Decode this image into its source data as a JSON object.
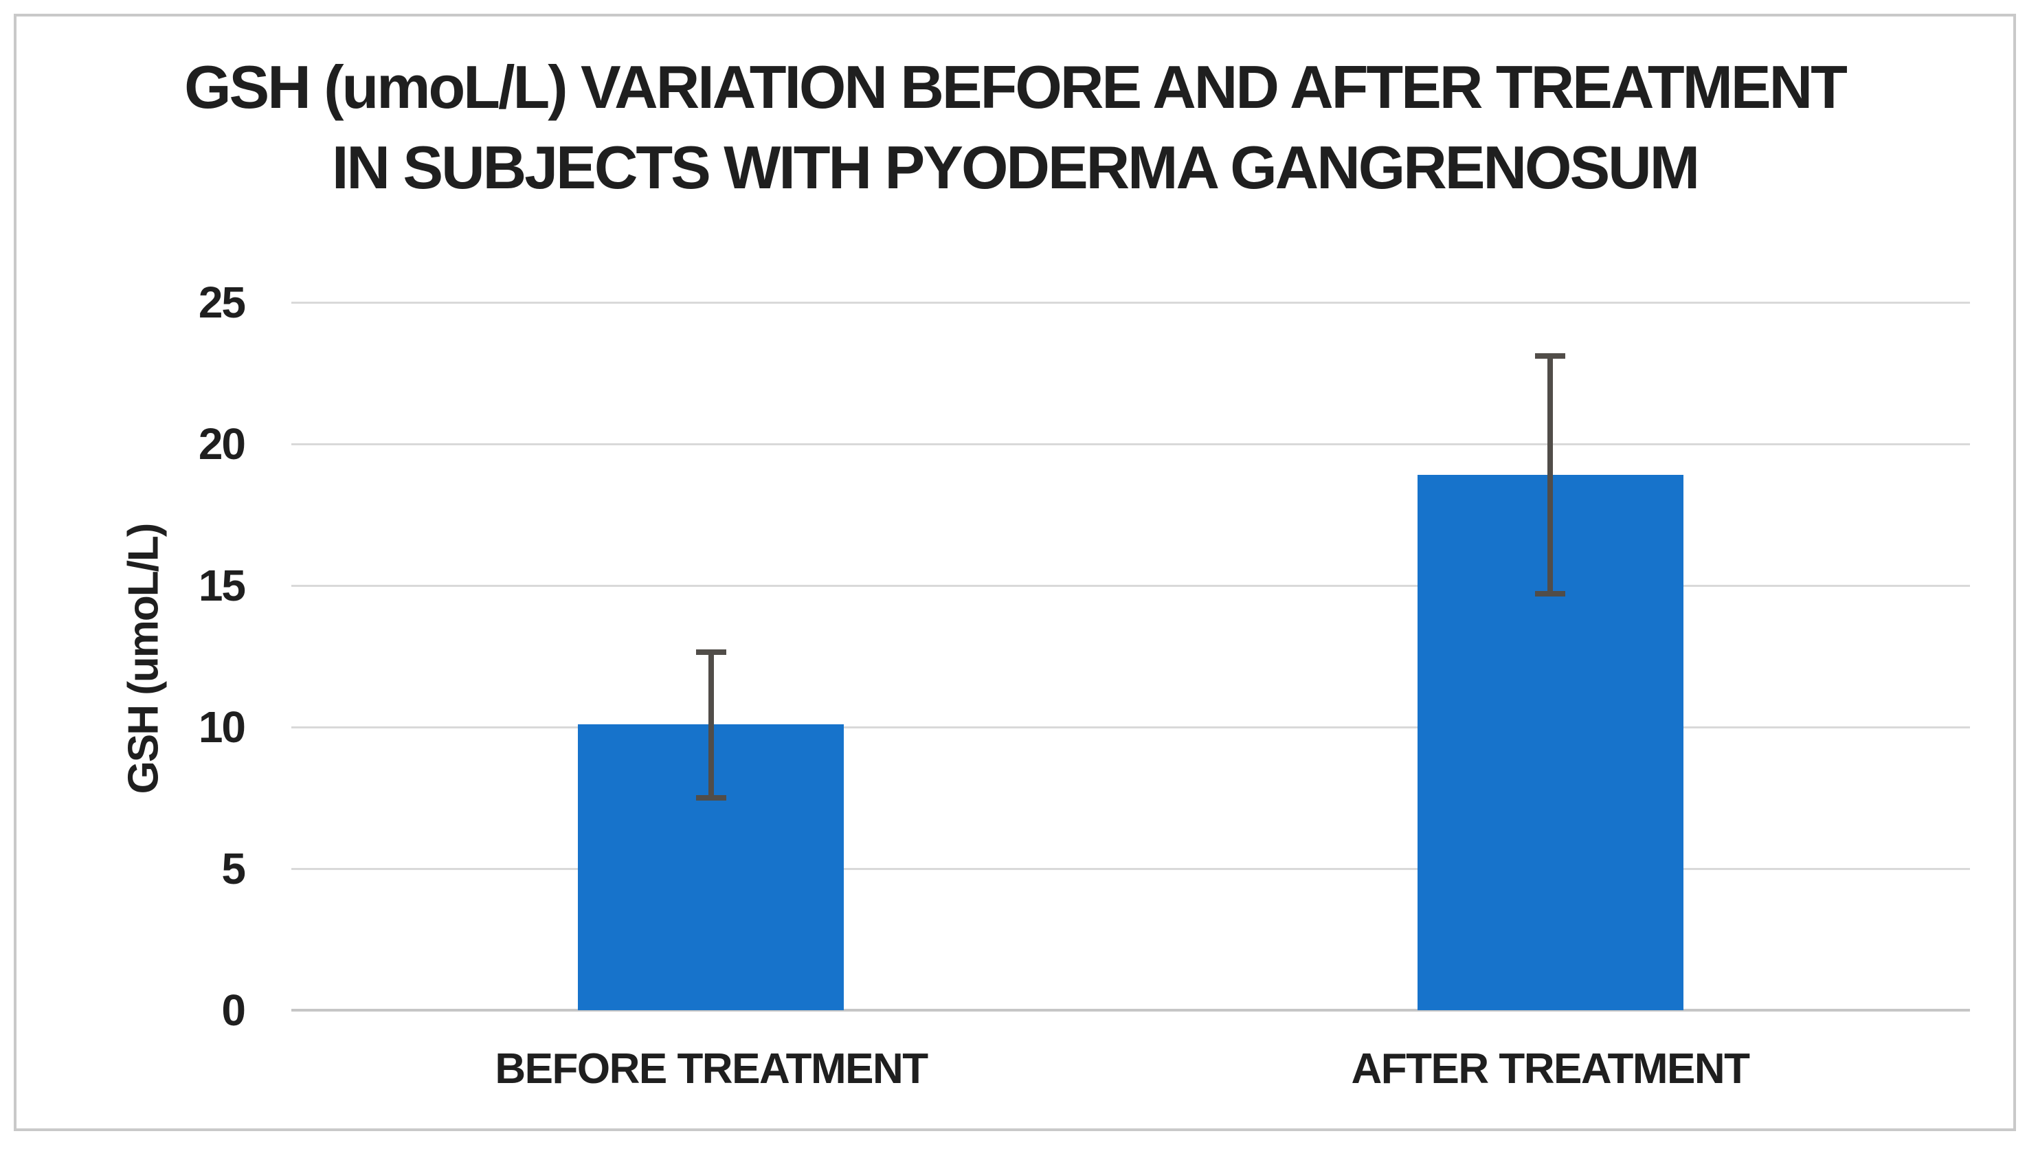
{
  "chart": {
    "title_line1": "GSH (umoL/L) VARIATION BEFORE AND AFTER TREATMENT",
    "title_line2": "IN SUBJECTS WITH PYODERMA GANGRENOSUM"
  },
  "chart_data": {
    "type": "bar",
    "title": "GSH (umoL/L) VARIATION BEFORE AND AFTER TREATMENT IN SUBJECTS WITH PYODERMA GANGRENOSUM",
    "categories": [
      "BEFORE TREATMENT",
      "AFTER TREATMENT"
    ],
    "values": [
      10.1,
      18.9
    ],
    "error_bars": [
      {
        "low": 7.5,
        "high": 12.65
      },
      {
        "low": 14.7,
        "high": 23.1
      }
    ],
    "xlabel": "",
    "ylabel": "GSH (umoL/L)",
    "ylim": [
      0,
      25
    ],
    "yticks": [
      0,
      5,
      10,
      15,
      20,
      25
    ],
    "grid": true,
    "legend_position": "none",
    "colors": {
      "bar_fill": "#1773CB",
      "error_bar": "#514D49",
      "gridline": "#D9D9D9",
      "axis_line": "#C6C6C6",
      "text": "#1F1F1F",
      "frame_border": "#C9C9C9",
      "background": "#FFFFFF"
    }
  }
}
